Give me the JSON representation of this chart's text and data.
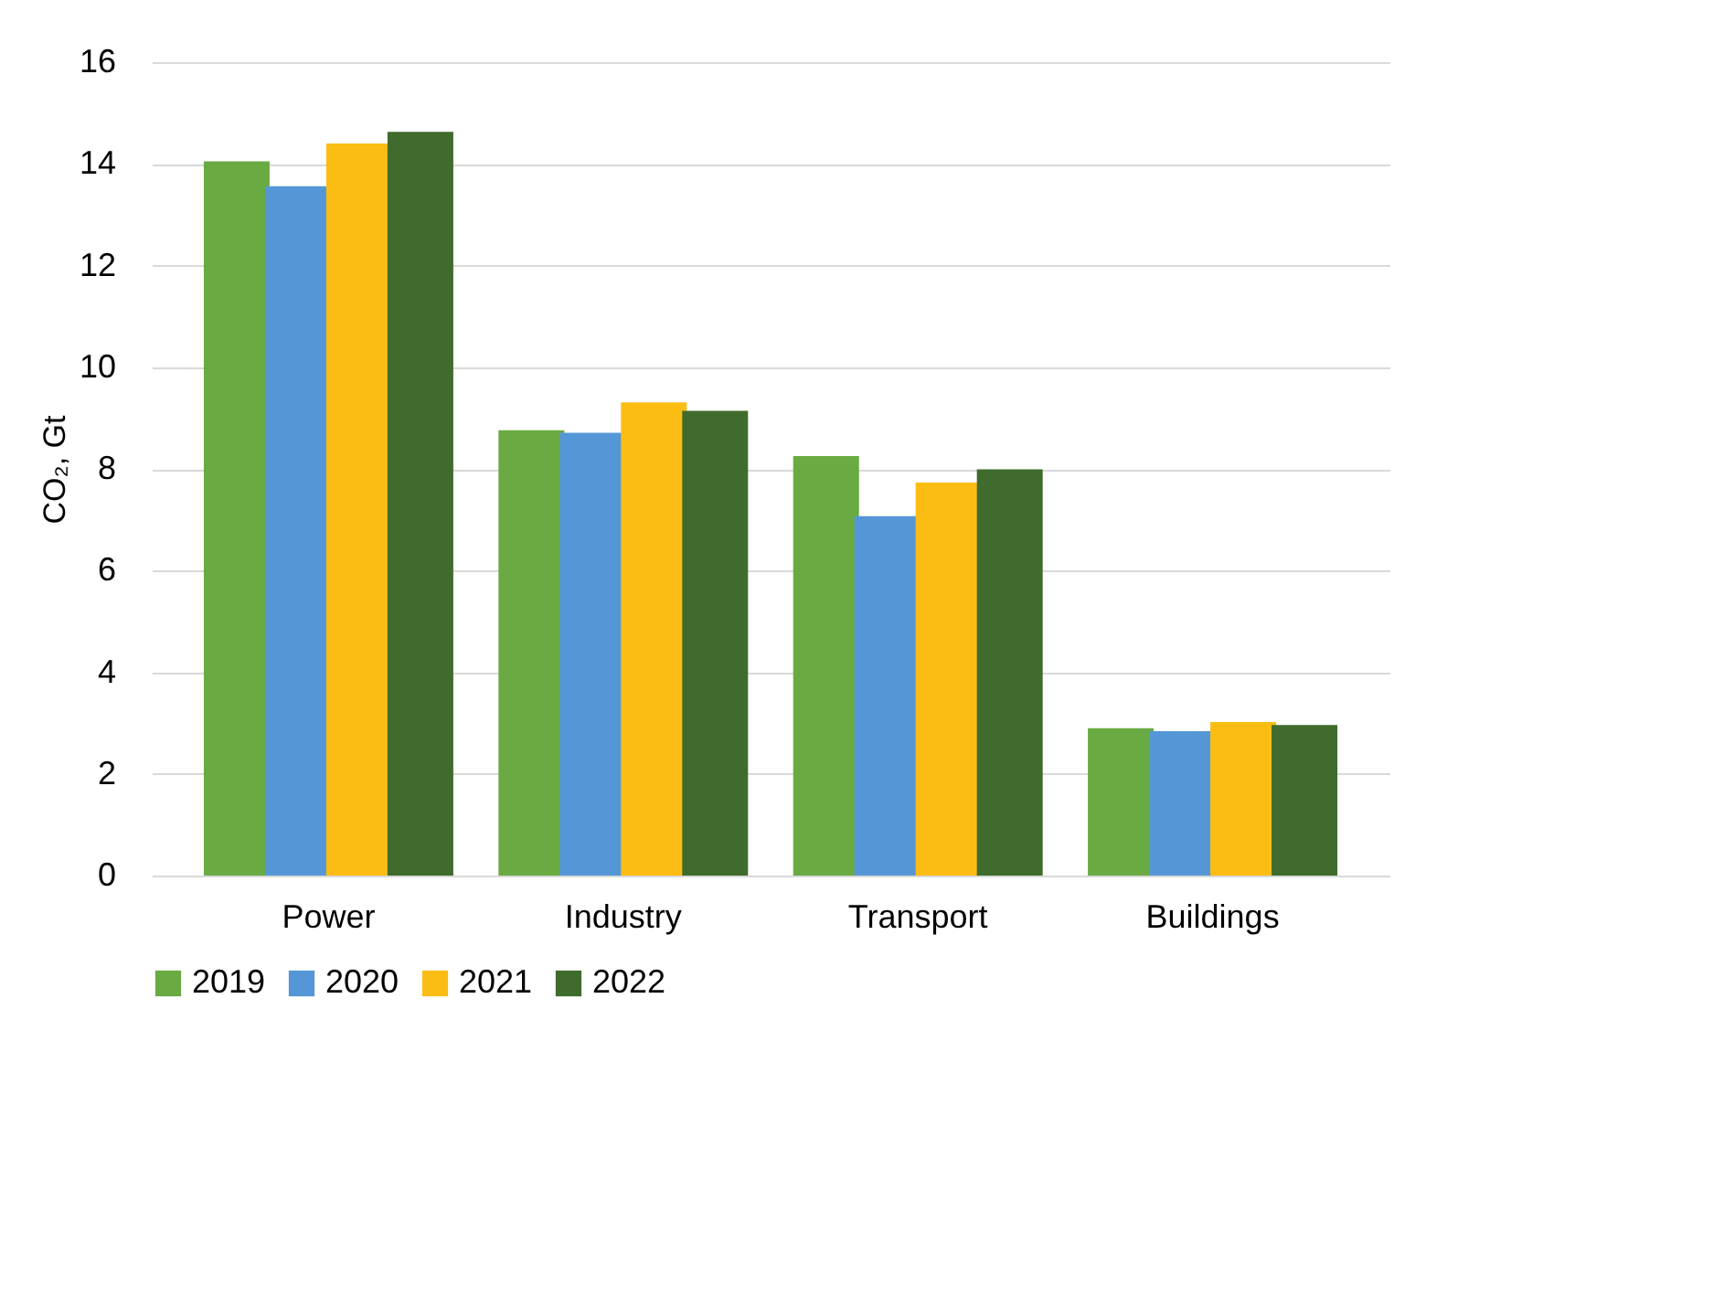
{
  "chart_data": {
    "type": "bar",
    "ylabel": "CO₂, Gt",
    "categories": [
      "Power",
      "Industry",
      "Transport",
      "Buildings"
    ],
    "series": [
      {
        "name": "2019",
        "color": "#6aaa42",
        "values": [
          14.05,
          8.76,
          8.25,
          2.9
        ]
      },
      {
        "name": "2020",
        "color": "#5597d6",
        "values": [
          13.56,
          8.71,
          7.07,
          2.84
        ]
      },
      {
        "name": "2021",
        "color": "#fbbd14",
        "values": [
          14.4,
          9.31,
          7.73,
          3.02
        ]
      },
      {
        "name": "2022",
        "color": "#3f6b2d",
        "values": [
          14.63,
          9.14,
          7.99,
          2.96
        ]
      }
    ],
    "ylim": [
      0,
      16
    ],
    "yticks": [
      0,
      2,
      4,
      6,
      8,
      10,
      12,
      14,
      16
    ],
    "grid": "y",
    "legend": "bottom"
  }
}
